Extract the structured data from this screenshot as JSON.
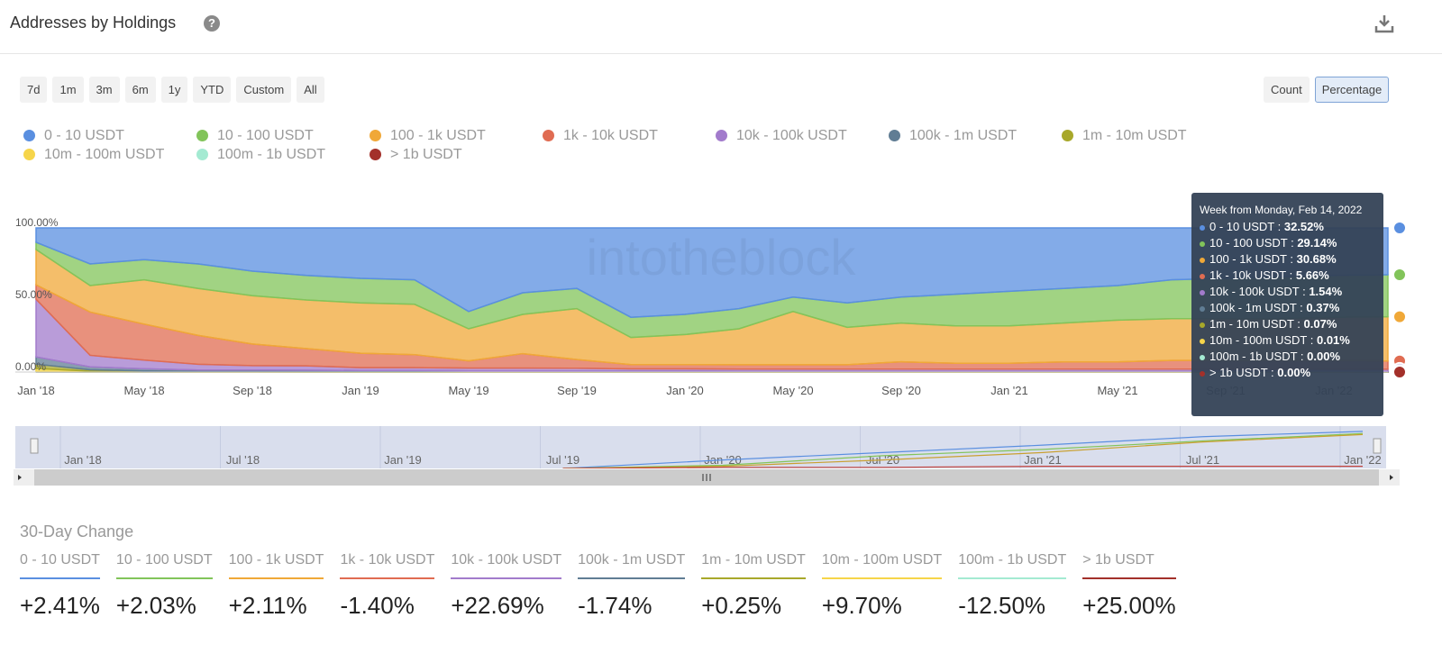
{
  "header": {
    "title": "Addresses by Holdings"
  },
  "range_buttons": [
    "7d",
    "1m",
    "3m",
    "6m",
    "1y",
    "YTD",
    "Custom",
    "All"
  ],
  "mode_buttons": [
    "Count",
    "Percentage"
  ],
  "active_mode": "Percentage",
  "watermark": "intotheblock",
  "chart_data": [
    {
      "type": "area",
      "stacked": true,
      "categories": [
        "Jan '18",
        null,
        "May '18",
        null,
        "Sep '18",
        null,
        "Jan '19",
        null,
        "May '19",
        null,
        "Sep '19",
        null,
        "Jan '20",
        null,
        "May '20",
        null,
        "Sep '20",
        null,
        "Jan '21",
        null,
        "May '21",
        null,
        "Sep '21",
        null,
        "Jan '22",
        null
      ],
      "ylim": [
        0,
        100
      ],
      "yticks": [
        {
          "value": 0,
          "label": "0.00%"
        },
        {
          "value": 50,
          "label": "50.00%"
        },
        {
          "value": 100,
          "label": "100.00%"
        }
      ],
      "grid": false,
      "series": [
        {
          "name": "0 - 10 USDT",
          "color": "#5a8fe0",
          "values": [
            10,
            25,
            22,
            25,
            30,
            33,
            35,
            36,
            58,
            45,
            42,
            62,
            60,
            56,
            48,
            52,
            48,
            46,
            44,
            42,
            40,
            36,
            35,
            34,
            33,
            32.52
          ]
        },
        {
          "name": "10 - 100 USDT",
          "color": "#82c45a",
          "values": [
            5,
            15,
            14,
            17,
            17,
            17,
            17,
            17,
            12,
            15,
            14,
            14,
            14,
            14,
            10,
            17,
            18,
            22,
            24,
            24,
            24,
            27,
            28,
            29,
            29,
            29.14
          ]
        },
        {
          "name": "100 - 1k USDT",
          "color": "#f0a838",
          "values": [
            24.5,
            18.4,
            30.75,
            32.58,
            33.58,
            33.73,
            34.93,
            34.93,
            22.23,
            27.23,
            35.33,
            18.83,
            20.83,
            24.93,
            36.93,
            25.93,
            26.93,
            25.93,
            25.93,
            26.93,
            28.93,
            28.93,
            28.93,
            28.93,
            29.93,
            30.68
          ]
        },
        {
          "name": "1k - 10k USDT",
          "color": "#e06c52",
          "values": [
            10,
            30,
            25,
            20,
            15,
            12,
            10,
            9,
            5,
            10,
            6,
            3,
            3,
            3,
            3,
            3,
            5,
            4,
            4,
            5,
            5,
            6,
            6,
            6,
            6,
            5.66
          ]
        },
        {
          "name": "10k - 100k USDT",
          "color": "#a27bcc",
          "values": [
            40,
            8,
            6,
            4,
            3,
            3,
            2,
            2,
            2,
            2,
            2,
            1.5,
            1.5,
            1.5,
            1.5,
            1.5,
            1.5,
            1.5,
            1.5,
            1.5,
            1.5,
            1.5,
            1.5,
            1.5,
            1.5,
            1.54
          ]
        },
        {
          "name": "100k - 1m USDT",
          "color": "#607d94",
          "values": [
            5,
            2,
            1.5,
            1,
            1,
            1,
            0.8,
            0.8,
            0.6,
            0.6,
            0.5,
            0.5,
            0.5,
            0.4,
            0.4,
            0.4,
            0.4,
            0.4,
            0.4,
            0.4,
            0.4,
            0.4,
            0.4,
            0.4,
            0.4,
            0.37
          ]
        },
        {
          "name": "1m - 10m USDT",
          "color": "#a8a82a",
          "values": [
            3,
            1,
            0.5,
            0.3,
            0.3,
            0.2,
            0.2,
            0.2,
            0.1,
            0.1,
            0.1,
            0.1,
            0.1,
            0.1,
            0.1,
            0.1,
            0.1,
            0.1,
            0.1,
            0.1,
            0.1,
            0.1,
            0.1,
            0.1,
            0.1,
            0.07
          ]
        },
        {
          "name": "10m - 100m USDT",
          "color": "#f6d54a",
          "values": [
            2,
            0.5,
            0.2,
            0.1,
            0.1,
            0.05,
            0.05,
            0.05,
            0.05,
            0.05,
            0.05,
            0.05,
            0.05,
            0.05,
            0.05,
            0.05,
            0.05,
            0.05,
            0.05,
            0.05,
            0.05,
            0.05,
            0.05,
            0.05,
            0.05,
            0.01
          ]
        },
        {
          "name": "100m - 1b USDT",
          "color": "#a4ead2",
          "values": [
            0.5,
            0.1,
            0.05,
            0.02,
            0.02,
            0.02,
            0.02,
            0.02,
            0.02,
            0.02,
            0.02,
            0.02,
            0.02,
            0.02,
            0.02,
            0.02,
            0.02,
            0.02,
            0.02,
            0.02,
            0.02,
            0.02,
            0.02,
            0.02,
            0.02,
            0
          ]
        },
        {
          "name": "> 1b USDT",
          "color": "#a3302a",
          "values": [
            0,
            0,
            0,
            0,
            0,
            0,
            0,
            0,
            0,
            0,
            0,
            0,
            0,
            0,
            0,
            0,
            0,
            0,
            0,
            0,
            0,
            0,
            0,
            0,
            0,
            0
          ]
        }
      ]
    },
    {
      "type": "line",
      "categories": [
        "Jan '18",
        "Jul '18",
        "Jan '19",
        "Jul '19",
        "Jan '20",
        "Jul '20",
        "Jan '21",
        "Jul '21",
        "Jan '22"
      ],
      "ylim": [
        0,
        40
      ],
      "series": [
        {
          "color": "#5a8fe0",
          "values": [
            null,
            null,
            null,
            0,
            8,
            15,
            22,
            30,
            35
          ]
        },
        {
          "color": "#82c45a",
          "values": [
            null,
            null,
            null,
            0,
            3,
            12,
            18,
            26,
            33
          ]
        },
        {
          "color": "#c9a030",
          "values": [
            null,
            null,
            null,
            0,
            2,
            8,
            15,
            25,
            32
          ]
        },
        {
          "color": "#c0403a",
          "values": [
            null,
            null,
            null,
            0,
            1,
            1,
            2,
            2,
            2
          ]
        }
      ]
    }
  ],
  "tooltip": {
    "title": "Week from Monday, Feb 14, 2022",
    "rows": [
      {
        "label": "0 - 10 USDT :",
        "value": "32.52%"
      },
      {
        "label": "10 - 100 USDT :",
        "value": "29.14%"
      },
      {
        "label": "100 - 1k USDT :",
        "value": "30.68%"
      },
      {
        "label": "1k - 10k USDT :",
        "value": "5.66%"
      },
      {
        "label": "10k - 100k USDT :",
        "value": "1.54%"
      },
      {
        "label": "100k - 1m USDT :",
        "value": "0.37%"
      },
      {
        "label": "1m - 10m USDT :",
        "value": "0.07%"
      },
      {
        "label": "10m - 100m USDT :",
        "value": "0.01%"
      },
      {
        "label": "100m - 1b USDT :",
        "value": "0.00%"
      },
      {
        "label": "> 1b USDT :",
        "value": "0.00%"
      }
    ]
  },
  "change": {
    "title": "30-Day Change",
    "items": [
      {
        "name": "0 - 10 USDT",
        "value": "+2.41%"
      },
      {
        "name": "10 - 100 USDT",
        "value": "+2.03%"
      },
      {
        "name": "100 - 1k USDT",
        "value": "+2.11%"
      },
      {
        "name": "1k - 10k USDT",
        "value": "-1.40%"
      },
      {
        "name": "10k - 100k USDT",
        "value": "+22.69%"
      },
      {
        "name": "100k - 1m USDT",
        "value": "-1.74%"
      },
      {
        "name": "1m - 10m USDT",
        "value": "+0.25%"
      },
      {
        "name": "10m - 100m USDT",
        "value": "+9.70%"
      },
      {
        "name": "100m - 1b USDT",
        "value": "-12.50%"
      },
      {
        "name": "> 1b USDT",
        "value": "+25.00%"
      }
    ]
  }
}
